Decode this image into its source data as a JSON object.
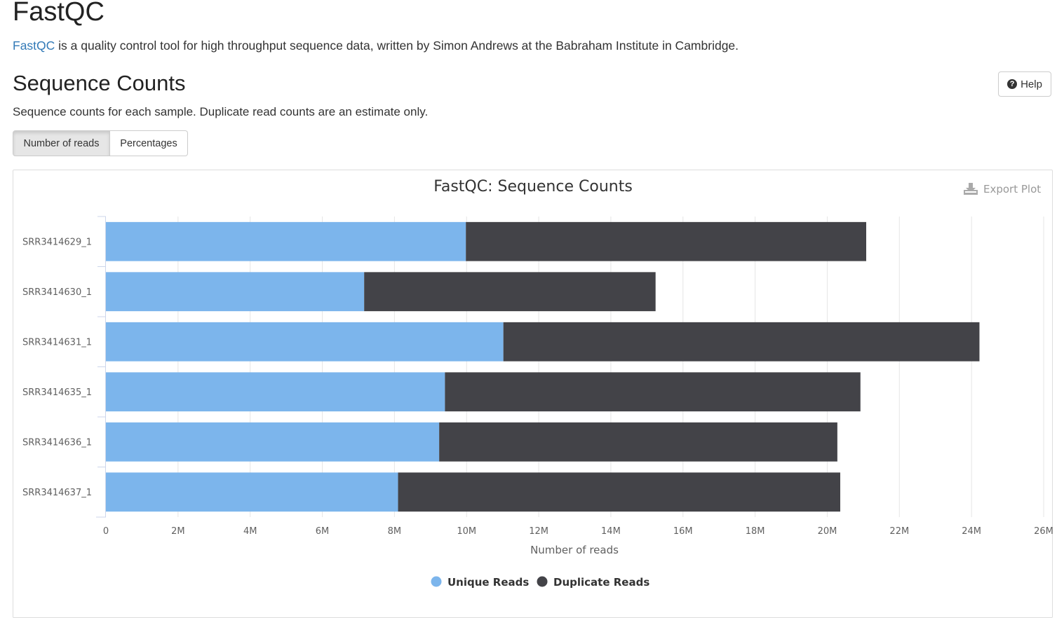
{
  "header": {
    "title": "FastQC",
    "intro_link": "FastQC",
    "intro_text": " is a quality control tool for high throughput sequence data, written by Simon Andrews at the Babraham Institute in Cambridge."
  },
  "section": {
    "title": "Sequence Counts",
    "help_label": "Help",
    "description": "Sequence counts for each sample. Duplicate read counts are an estimate only.",
    "toggle_buttons": [
      "Number of reads",
      "Percentages"
    ],
    "active_toggle": "Number of reads"
  },
  "export_label": "Export Plot",
  "chart_data": {
    "type": "bar",
    "orientation": "horizontal",
    "stacked": true,
    "title": "FastQC: Sequence Counts",
    "xlabel": "Number of reads",
    "ylabel": "",
    "xlim": [
      0,
      26000000
    ],
    "xticks": [
      0,
      2000000,
      4000000,
      6000000,
      8000000,
      10000000,
      12000000,
      14000000,
      16000000,
      18000000,
      20000000,
      22000000,
      24000000,
      26000000
    ],
    "xtick_labels": [
      "0",
      "2M",
      "4M",
      "6M",
      "8M",
      "10M",
      "12M",
      "14M",
      "16M",
      "18M",
      "20M",
      "22M",
      "24M",
      "26M"
    ],
    "categories": [
      "SRR3414629_1",
      "SRR3414630_1",
      "SRR3414631_1",
      "SRR3414635_1",
      "SRR3414636_1",
      "SRR3414637_1"
    ],
    "series": [
      {
        "name": "Unique Reads",
        "color": "#7cb5ec",
        "values": [
          9980000,
          7160000,
          11020000,
          9400000,
          9240000,
          8100000
        ]
      },
      {
        "name": "Duplicate Reads",
        "color": "#434348",
        "values": [
          11100000,
          8080000,
          13200000,
          11520000,
          11040000,
          12260000
        ]
      }
    ],
    "grid": "vertical",
    "legend_position": "bottom-center"
  }
}
